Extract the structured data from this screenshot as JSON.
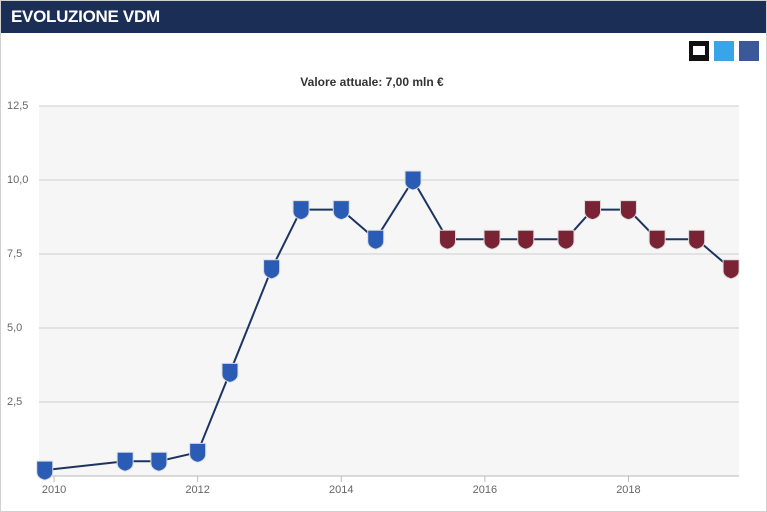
{
  "header": {
    "title": "EVOLUZIONE VDM"
  },
  "chart_data": {
    "type": "line",
    "subtitle": "Valore attuale: 7,00 mln €",
    "xlim": [
      2009.79,
      2019.54
    ],
    "xticks": [
      2010,
      2012,
      2014,
      2016,
      2018
    ],
    "ylim": [
      0,
      12.5
    ],
    "yticks": [
      {
        "value": 2.5,
        "label": "2,5"
      },
      {
        "value": 5,
        "label": "5,0"
      },
      {
        "value": 7.5,
        "label": "7,5"
      },
      {
        "value": 10,
        "label": "10,0"
      },
      {
        "value": 12.5,
        "label": "12,5"
      }
    ],
    "grid": true,
    "series": [
      {
        "color": "#1d3461",
        "x": [
          2009.87,
          2010.99,
          2011.46,
          2012.0,
          2012.45,
          2013.03,
          2013.44,
          2014.0,
          2014.48,
          2015.0,
          2015.48,
          2016.1,
          2016.57,
          2017.13,
          2017.5,
          2018.0,
          2018.4,
          2018.95,
          2019.43
        ],
        "values": [
          0.2,
          0.5,
          0.5,
          0.8,
          3.5,
          7,
          9,
          9,
          8,
          10,
          8,
          8,
          8,
          8,
          9,
          9,
          8,
          8,
          7
        ],
        "marker_colors": [
          "#2a5bb5",
          "#2a5bb5",
          "#2a5bb5",
          "#2a5bb5",
          "#2a5bb5",
          "#2a5bb5",
          "#2a5bb5",
          "#2a5bb5",
          "#2a5bb5",
          "#2a5bb5",
          "#7a2335",
          "#7a2335",
          "#7a2335",
          "#7a2335",
          "#7a2335",
          "#7a2335",
          "#7a2335",
          "#7a2335",
          "#7a2335"
        ]
      }
    ]
  }
}
